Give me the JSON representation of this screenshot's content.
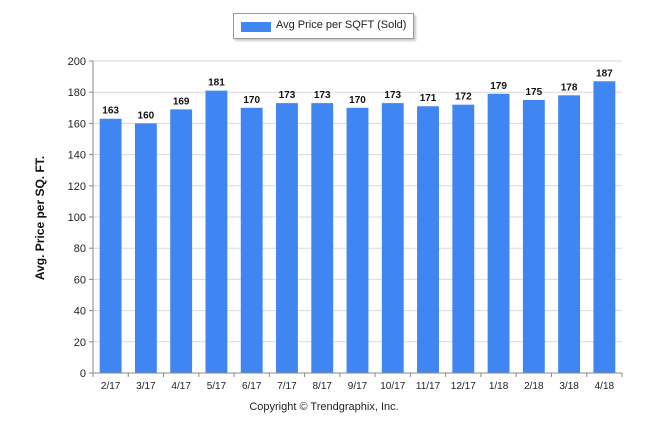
{
  "legend": {
    "label": "Avg Price per SQFT (Sold)"
  },
  "footer": {
    "copyright": "Copyright © Trendgraphix, Inc."
  },
  "colors": {
    "bar": "#3f86f2",
    "grid": "#d9d9d9",
    "axis": "#888888"
  },
  "chart_data": {
    "type": "bar",
    "title": "",
    "xlabel": "",
    "ylabel": "Avg. Price per SQ. FT.",
    "categories": [
      "2/17",
      "3/17",
      "4/17",
      "5/17",
      "6/17",
      "7/17",
      "8/17",
      "9/17",
      "10/17",
      "11/17",
      "12/17",
      "1/18",
      "2/18",
      "3/18",
      "4/18"
    ],
    "series": [
      {
        "name": "Avg Price per SQFT (Sold)",
        "values": [
          163,
          160,
          169,
          181,
          170,
          173,
          173,
          170,
          173,
          171,
          172,
          179,
          175,
          178,
          187
        ]
      }
    ],
    "ylim": [
      0,
      200
    ],
    "yticks": [
      0,
      20,
      40,
      60,
      80,
      100,
      120,
      140,
      160,
      180,
      200
    ],
    "grid": true,
    "legend_position": "top-center",
    "data_labels": true
  }
}
